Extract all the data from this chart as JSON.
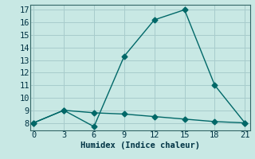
{
  "xlabel": "Humidex (Indice chaleur)",
  "ylabel": "",
  "bg_color": "#c8e8e4",
  "grid_color": "#a8cccc",
  "line_color": "#006868",
  "line1_x": [
    0,
    3,
    6,
    9,
    12,
    15,
    18,
    21
  ],
  "line1_y": [
    8,
    9,
    7.7,
    13.3,
    16.2,
    17,
    11,
    8
  ],
  "line2_x": [
    0,
    3,
    6,
    9,
    12,
    15,
    18,
    21
  ],
  "line2_y": [
    8,
    9,
    8.8,
    8.7,
    8.5,
    8.3,
    8.1,
    8
  ],
  "xlim": [
    -0.3,
    21.5
  ],
  "ylim": [
    7.4,
    17.4
  ],
  "xticks": [
    0,
    3,
    6,
    9,
    12,
    15,
    18,
    21
  ],
  "yticks": [
    8,
    9,
    10,
    11,
    12,
    13,
    14,
    15,
    16,
    17
  ],
  "markersize": 3.5,
  "linewidth": 1.0,
  "axis_fontsize": 7.5,
  "tick_fontsize": 7.5
}
